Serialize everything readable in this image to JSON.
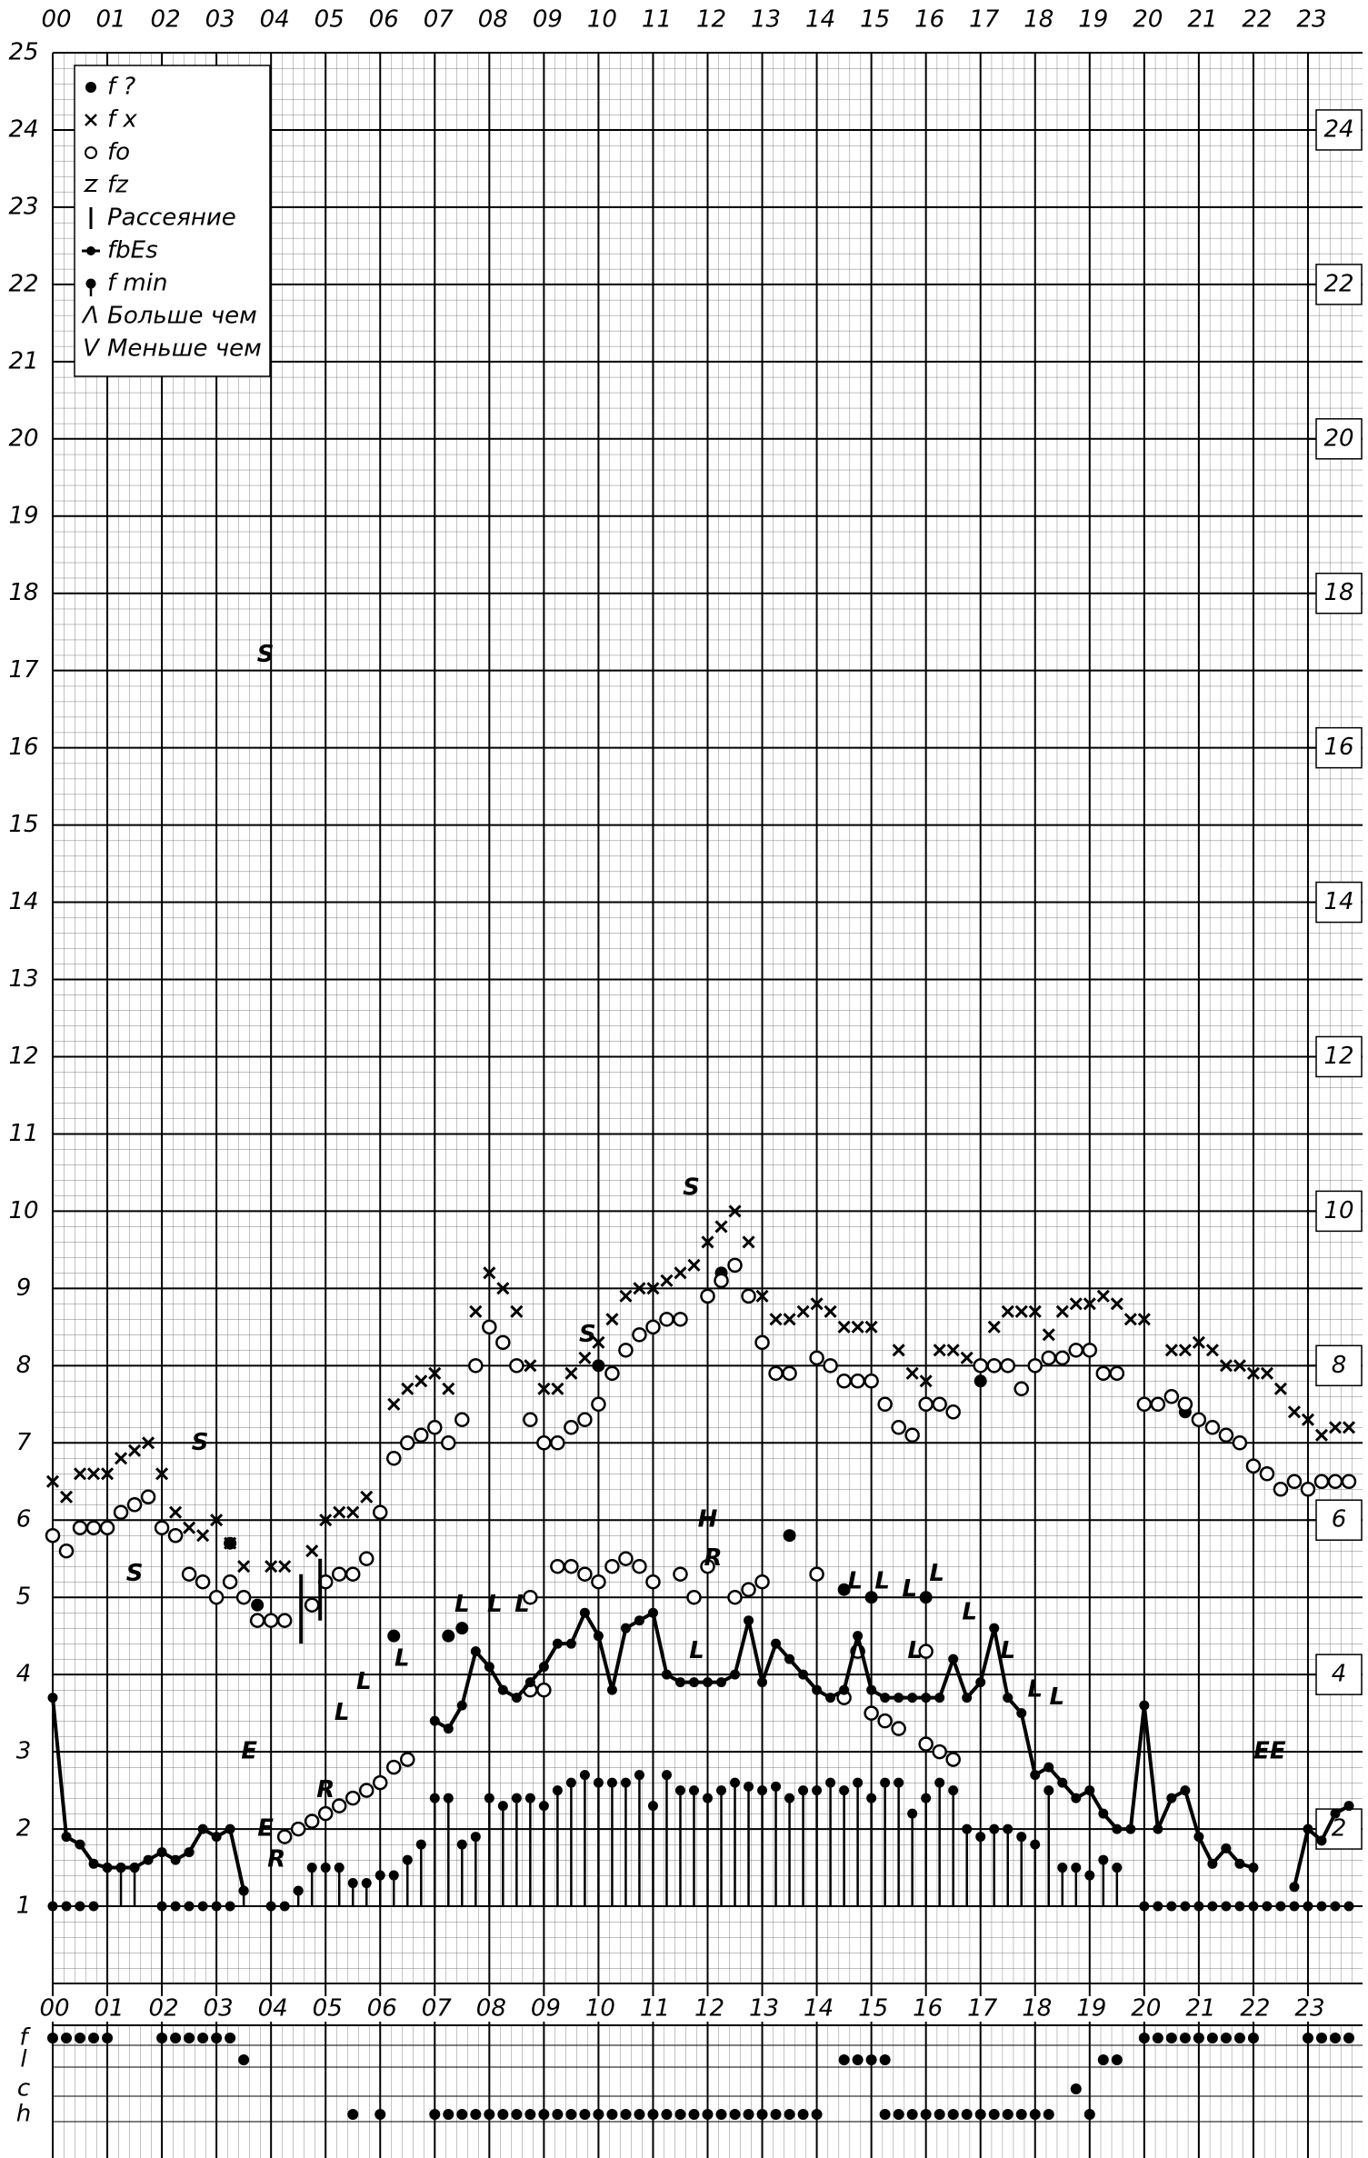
{
  "chart_data": {
    "type": "scatter",
    "xlim": [
      0,
      24
    ],
    "xticks": [
      {
        "value": 0,
        "label": "00"
      },
      {
        "value": 1,
        "label": "01"
      },
      {
        "value": 2,
        "label": "02"
      },
      {
        "value": 3,
        "label": "03"
      },
      {
        "value": 4,
        "label": "04"
      },
      {
        "value": 5,
        "label": "05"
      },
      {
        "value": 6,
        "label": "06"
      },
      {
        "value": 7,
        "label": "07"
      },
      {
        "value": 8,
        "label": "08"
      },
      {
        "value": 9,
        "label": "09"
      },
      {
        "value": 10,
        "label": "10"
      },
      {
        "value": 11,
        "label": "11"
      },
      {
        "value": 12,
        "label": "12"
      },
      {
        "value": 13,
        "label": "13"
      },
      {
        "value": 14,
        "label": "14"
      },
      {
        "value": 15,
        "label": "15"
      },
      {
        "value": 16,
        "label": "16"
      },
      {
        "value": 17,
        "label": "17"
      },
      {
        "value": 18,
        "label": "18"
      },
      {
        "value": 19,
        "label": "19"
      },
      {
        "value": 20,
        "label": "20"
      },
      {
        "value": 21,
        "label": "21"
      },
      {
        "value": 22,
        "label": "22"
      },
      {
        "value": 23,
        "label": "23"
      }
    ],
    "ylim": [
      0,
      25
    ],
    "yticks": [
      1,
      2,
      3,
      4,
      5,
      6,
      7,
      8,
      9,
      10,
      11,
      12,
      13,
      14,
      15,
      16,
      17,
      18,
      19,
      20,
      21,
      22,
      23,
      24,
      25
    ],
    "y2lim": [
      0,
      25
    ],
    "y2ticks": [
      2,
      4,
      6,
      8,
      10,
      12,
      14,
      16,
      18,
      20,
      22,
      24
    ],
    "grid": true,
    "legend": "top-left",
    "series": [
      {
        "name": "f ?",
        "marker": "dot",
        "color": "#000",
        "x": [
          1.5,
          3.25,
          3.75,
          6.25,
          7.25,
          7.5,
          10,
          12.25,
          13.5,
          14.5,
          15,
          16,
          17,
          20.75
        ],
        "values": [
          6.2,
          5.7,
          4.9,
          4.5,
          4.5,
          4.6,
          8.0,
          9.2,
          5.8,
          5.1,
          5.0,
          5.0,
          7.8,
          7.4
        ]
      },
      {
        "name": "f x",
        "marker": "x",
        "color": "#000",
        "x": [
          0,
          0.25,
          0.5,
          0.75,
          1,
          1.25,
          1.5,
          1.75,
          2,
          2.25,
          2.5,
          2.75,
          3,
          3.25,
          3.5,
          4,
          4.25,
          4.75,
          5,
          5.25,
          5.5,
          5.75,
          6.25,
          6.5,
          6.75,
          7,
          7.25,
          7.75,
          8,
          8.25,
          8.5,
          8.75,
          9,
          9.25,
          9.5,
          9.75,
          10,
          10.25,
          10.5,
          10.75,
          11,
          11.25,
          11.5,
          11.75,
          12,
          12.25,
          12.5,
          12.75,
          13,
          13.25,
          13.5,
          13.75,
          14,
          14.25,
          14.5,
          14.75,
          15,
          15.5,
          15.75,
          16,
          16.25,
          16.5,
          16.75,
          17.25,
          17.5,
          17.75,
          18,
          18.25,
          18.5,
          18.75,
          19,
          19.25,
          19.5,
          19.75,
          20,
          20.5,
          20.75,
          21,
          21.25,
          21.5,
          21.75,
          22,
          22.25,
          22.5,
          22.75,
          23,
          23.25,
          23.5,
          23.75
        ],
        "values": [
          6.5,
          6.3,
          6.6,
          6.6,
          6.6,
          6.8,
          6.9,
          7.0,
          6.6,
          6.1,
          5.9,
          5.8,
          6.0,
          5.7,
          5.4,
          5.4,
          5.4,
          5.6,
          6.0,
          6.1,
          6.1,
          6.3,
          7.5,
          7.7,
          7.8,
          7.9,
          7.7,
          8.7,
          9.2,
          9.0,
          8.7,
          8.0,
          7.7,
          7.7,
          7.9,
          8.1,
          8.3,
          8.6,
          8.9,
          9.0,
          9.0,
          9.1,
          9.2,
          9.3,
          9.6,
          9.8,
          10.0,
          9.6,
          8.9,
          8.6,
          8.6,
          8.7,
          8.8,
          8.7,
          8.5,
          8.5,
          8.5,
          8.2,
          7.9,
          7.8,
          8.2,
          8.2,
          8.1,
          8.5,
          8.7,
          8.7,
          8.7,
          8.4,
          8.7,
          8.8,
          8.8,
          8.9,
          8.8,
          8.6,
          8.6,
          8.2,
          8.2,
          8.3,
          8.2,
          8.0,
          8.0,
          7.9,
          7.9,
          7.7,
          7.4,
          7.3,
          7.1,
          7.2,
          7.2
        ]
      },
      {
        "name": "fo",
        "marker": "circle",
        "color": "#000",
        "x": [
          0,
          0.25,
          0.5,
          0.75,
          1,
          1.25,
          1.5,
          1.75,
          2,
          2.25,
          2.5,
          2.75,
          3,
          3.25,
          3.5,
          3.75,
          4,
          4.25,
          4.75,
          5,
          5.25,
          5.5,
          5.75,
          6,
          6.25,
          6.5,
          6.75,
          7,
          7.25,
          7.5,
          7.75,
          8,
          8.25,
          8.5,
          8.75,
          9,
          9.25,
          9.5,
          9.75,
          10,
          10.25,
          10.5,
          10.75,
          11,
          11.25,
          11.5,
          12,
          12.25,
          12.5,
          12.75,
          13,
          13.25,
          13.5,
          14,
          14.25,
          14.5,
          14.75,
          15,
          15.25,
          15.5,
          15.75,
          16,
          16.25,
          16.5,
          17,
          17.25,
          17.5,
          17.75,
          18,
          18.25,
          18.5,
          18.75,
          19,
          19.25,
          19.5,
          20,
          20.25,
          20.5,
          20.75,
          21,
          21.25,
          21.5,
          21.75,
          22,
          22.25,
          22.5,
          22.75,
          23,
          23.25,
          23.5,
          23.75,
          8.75,
          9.25,
          9.5,
          9.75,
          10,
          10.25,
          10.5,
          10.75,
          11,
          11.5,
          11.75,
          12,
          12.5,
          12.75,
          13,
          14,
          4.25,
          4.5,
          4.75,
          5,
          5.25,
          5.5,
          5.75,
          6,
          6.25,
          6.5,
          8.75,
          9,
          14.5,
          14.75,
          15,
          15.25,
          15.5,
          16,
          16,
          16.25,
          16.5
        ],
        "values": [
          5.8,
          5.6,
          5.9,
          5.9,
          5.9,
          6.1,
          6.2,
          6.3,
          5.9,
          5.8,
          5.3,
          5.2,
          5.0,
          5.2,
          5.0,
          4.7,
          4.7,
          4.7,
          4.9,
          5.2,
          5.3,
          5.3,
          5.5,
          6.1,
          6.8,
          7.0,
          7.1,
          7.2,
          7.0,
          7.3,
          8.0,
          8.5,
          8.3,
          8.0,
          7.3,
          7.0,
          7.0,
          7.2,
          7.3,
          7.5,
          7.9,
          8.2,
          8.4,
          8.5,
          8.6,
          8.6,
          8.9,
          9.1,
          9.3,
          8.9,
          8.3,
          7.9,
          7.9,
          8.1,
          8.0,
          7.8,
          7.8,
          7.8,
          7.5,
          7.2,
          7.1,
          7.5,
          7.5,
          7.4,
          8.0,
          8.0,
          8.0,
          7.7,
          8.0,
          8.1,
          8.1,
          8.2,
          8.2,
          7.9,
          7.9,
          7.5,
          7.5,
          7.6,
          7.5,
          7.3,
          7.2,
          7.1,
          7.0,
          6.7,
          6.6,
          6.4,
          6.5,
          6.4,
          6.5,
          6.5,
          6.5,
          5.0,
          5.4,
          5.4,
          5.3,
          5.2,
          5.4,
          5.5,
          5.4,
          5.2,
          5.3,
          5.0,
          5.4,
          5.0,
          5.1,
          5.2,
          5.3,
          1.9,
          2.0,
          2.1,
          2.2,
          2.3,
          2.4,
          2.5,
          2.6,
          2.8,
          2.9,
          3.8,
          3.8,
          3.7,
          4.3,
          3.5,
          3.4,
          3.3,
          4.3,
          3.1,
          3.0,
          2.9
        ]
      },
      {
        "name": "fz",
        "marker": "none",
        "color": "#000",
        "x": [],
        "values": []
      },
      {
        "name": "Рассеяние",
        "marker": "spread",
        "color": "#000",
        "x": [
          4.55,
          4.9
        ],
        "values": [
          4.4,
          4.7
        ],
        "highs": [
          5.3,
          5.5
        ]
      },
      {
        "name": "fbEs",
        "marker": "line",
        "color": "#000",
        "x": [
          0,
          0.25,
          0.5,
          0.75,
          1,
          1.25,
          1.5,
          1.75,
          2,
          2.25,
          2.5,
          2.75,
          3,
          3.25,
          3.5,
          3.75,
          7,
          7.25,
          7.5,
          7.75,
          8,
          8.25,
          8.5,
          8.75,
          9,
          9.25,
          9.5,
          9.75,
          10,
          10.25,
          10.5,
          10.75,
          11,
          11.25,
          11.5,
          11.75,
          12,
          12.25,
          12.5,
          12.75,
          13,
          13.25,
          13.5,
          13.75,
          14,
          14.25,
          14.5,
          14.75,
          15,
          15.25,
          15.5,
          15.75,
          16,
          16.25,
          16.5,
          16.75,
          17,
          17.25,
          17.5,
          17.75,
          18,
          18.25,
          18.5,
          18.75,
          19,
          19.25,
          19.5,
          19.75,
          20,
          20.25,
          20.5,
          20.75,
          21,
          21.25,
          21.5,
          21.75,
          22,
          22.25,
          22.75,
          23,
          23.25,
          23.5,
          23.75
        ],
        "values": [
          3.7,
          1.9,
          1.8,
          1.55,
          1.5,
          1.5,
          1.5,
          1.6,
          1.7,
          1.6,
          1.7,
          2.0,
          1.9,
          2.0,
          1.2,
          null,
          3.4,
          3.3,
          3.6,
          4.3,
          4.1,
          3.8,
          3.7,
          3.9,
          4.1,
          4.4,
          4.4,
          4.8,
          4.5,
          3.8,
          4.6,
          4.7,
          4.8,
          4.0,
          3.9,
          3.9,
          3.9,
          3.9,
          4.0,
          4.7,
          3.9,
          4.4,
          4.2,
          4.0,
          3.8,
          3.7,
          3.8,
          4.5,
          3.8,
          3.7,
          3.7,
          3.7,
          3.7,
          3.7,
          4.2,
          3.7,
          3.9,
          4.6,
          3.7,
          3.5,
          2.7,
          2.8,
          2.6,
          2.4,
          2.5,
          2.2,
          2.0,
          2.0,
          3.6,
          2.0,
          2.4,
          2.5,
          1.9,
          1.55,
          1.75,
          1.55,
          1.5,
          null,
          1.25,
          2.0,
          1.85,
          2.2,
          2.3
        ]
      },
      {
        "name": "f min",
        "marker": "stem",
        "color": "#000",
        "x": [
          0,
          0.25,
          0.5,
          0.75,
          1,
          1.25,
          1.5,
          2,
          2.25,
          2.5,
          2.75,
          3,
          3.25,
          3.5,
          4,
          4.25,
          4.5,
          4.75,
          5,
          5.25,
          5.5,
          5.75,
          6,
          6.25,
          6.5,
          6.75,
          7,
          7.25,
          7.5,
          7.75,
          8,
          8.25,
          8.5,
          8.75,
          9,
          9.25,
          9.5,
          9.75,
          10,
          10.25,
          10.5,
          10.75,
          11,
          11.25,
          11.5,
          11.75,
          12,
          12.25,
          12.5,
          12.75,
          13,
          13.25,
          13.5,
          13.75,
          14,
          14.25,
          14.5,
          14.75,
          15,
          15.25,
          15.5,
          15.75,
          16,
          16.25,
          16.5,
          16.75,
          17,
          17.25,
          17.5,
          17.75,
          18,
          18.25,
          18.5,
          18.75,
          19,
          19.25,
          19.5,
          20,
          20.25,
          20.5,
          20.75,
          21,
          21.25,
          21.5,
          21.75,
          22,
          22.25,
          22.5,
          22.75,
          23,
          23.25,
          23.5,
          23.75
        ],
        "values": [
          1,
          1,
          1,
          1,
          1.5,
          1.5,
          1.5,
          1,
          1,
          1,
          1,
          1,
          1,
          1.2,
          1,
          1,
          1.2,
          1.5,
          1.5,
          1.5,
          1.3,
          1.3,
          1.4,
          1.4,
          1.6,
          1.8,
          2.4,
          2.4,
          1.8,
          1.9,
          2.4,
          2.3,
          2.4,
          2.4,
          2.3,
          2.5,
          2.6,
          2.7,
          2.6,
          2.6,
          2.6,
          2.7,
          2.3,
          2.7,
          2.5,
          2.5,
          2.4,
          2.5,
          2.6,
          2.55,
          2.5,
          2.55,
          2.4,
          2.5,
          2.5,
          2.6,
          2.5,
          2.6,
          2.4,
          2.6,
          2.6,
          2.2,
          2.4,
          2.6,
          2.5,
          2.0,
          1.9,
          2.0,
          2.0,
          1.9,
          1.8,
          2.5,
          1.5,
          1.5,
          1.4,
          1.6,
          1.5,
          1,
          1,
          1,
          1,
          1,
          1,
          1,
          1,
          1,
          1,
          1,
          1,
          1,
          1,
          1,
          1
        ]
      }
    ],
    "legend_extra": [
      {
        "symbol": "Λ",
        "text": "Больше чем"
      },
      {
        "symbol": "V",
        "text": "Меньше чем"
      }
    ],
    "annotations": [
      {
        "text": "S",
        "x": 3.9,
        "y": 17.2
      },
      {
        "text": "S",
        "x": 2.7,
        "y": 7.0
      },
      {
        "text": "S",
        "x": 1.5,
        "y": 5.3
      },
      {
        "text": "S",
        "x": 11.7,
        "y": 10.3
      },
      {
        "text": "S",
        "x": 9.8,
        "y": 8.4
      },
      {
        "text": "H",
        "x": 12.0,
        "y": 6.0
      },
      {
        "text": "R",
        "x": 12.1,
        "y": 5.5
      },
      {
        "text": "E",
        "x": 3.6,
        "y": 3.0
      },
      {
        "text": "E",
        "x": 3.9,
        "y": 2.0
      },
      {
        "text": "R",
        "x": 4.1,
        "y": 1.6
      },
      {
        "text": "R",
        "x": 5.0,
        "y": 2.5
      },
      {
        "text": "EE",
        "x": 22.3,
        "y": 3.0
      },
      {
        "text": "L",
        "x": 5.3,
        "y": 3.5
      },
      {
        "text": "L",
        "x": 5.7,
        "y": 3.9
      },
      {
        "text": "L",
        "x": 6.4,
        "y": 4.2
      },
      {
        "text": "L",
        "x": 7.5,
        "y": 4.9
      },
      {
        "text": "L",
        "x": 8.1,
        "y": 4.9
      },
      {
        "text": "L",
        "x": 8.6,
        "y": 4.9
      },
      {
        "text": "L",
        "x": 11.8,
        "y": 4.3
      },
      {
        "text": "L",
        "x": 14.7,
        "y": 5.2
      },
      {
        "text": "L",
        "x": 15.2,
        "y": 5.2
      },
      {
        "text": "L",
        "x": 15.7,
        "y": 5.1
      },
      {
        "text": "L",
        "x": 16.2,
        "y": 5.3
      },
      {
        "text": "L",
        "x": 15.8,
        "y": 4.3
      },
      {
        "text": "L",
        "x": 16.8,
        "y": 4.8
      },
      {
        "text": "L",
        "x": 17.5,
        "y": 4.3
      },
      {
        "text": "L",
        "x": 18.0,
        "y": 3.8
      },
      {
        "text": "L",
        "x": 18.4,
        "y": 3.7
      }
    ],
    "strip": [
      {
        "name": "f",
        "x": [
          0,
          0.25,
          0.5,
          0.75,
          1,
          2,
          2.25,
          2.5,
          2.75,
          3,
          3.25,
          20,
          20.25,
          20.5,
          20.75,
          21,
          21.25,
          21.5,
          21.75,
          22,
          23,
          23.25,
          23.5,
          23.75
        ]
      },
      {
        "name": "l",
        "x": [
          3.5,
          14.5,
          14.75,
          15,
          15.25,
          19.25,
          19.5
        ]
      },
      {
        "name": "c",
        "x": [
          18.75
        ]
      },
      {
        "name": "h",
        "x": [
          5.5,
          6,
          7,
          7.25,
          7.5,
          7.75,
          8,
          8.25,
          8.5,
          8.75,
          9,
          9.25,
          9.5,
          9.75,
          10,
          10.25,
          10.5,
          10.75,
          11,
          11.25,
          11.5,
          11.75,
          12,
          12.25,
          12.5,
          12.75,
          13,
          13.25,
          13.5,
          13.75,
          14,
          15.25,
          15.5,
          15.75,
          16,
          16.25,
          16.5,
          16.75,
          17,
          17.25,
          17.5,
          17.75,
          18,
          18.25,
          19
        ]
      }
    ]
  }
}
